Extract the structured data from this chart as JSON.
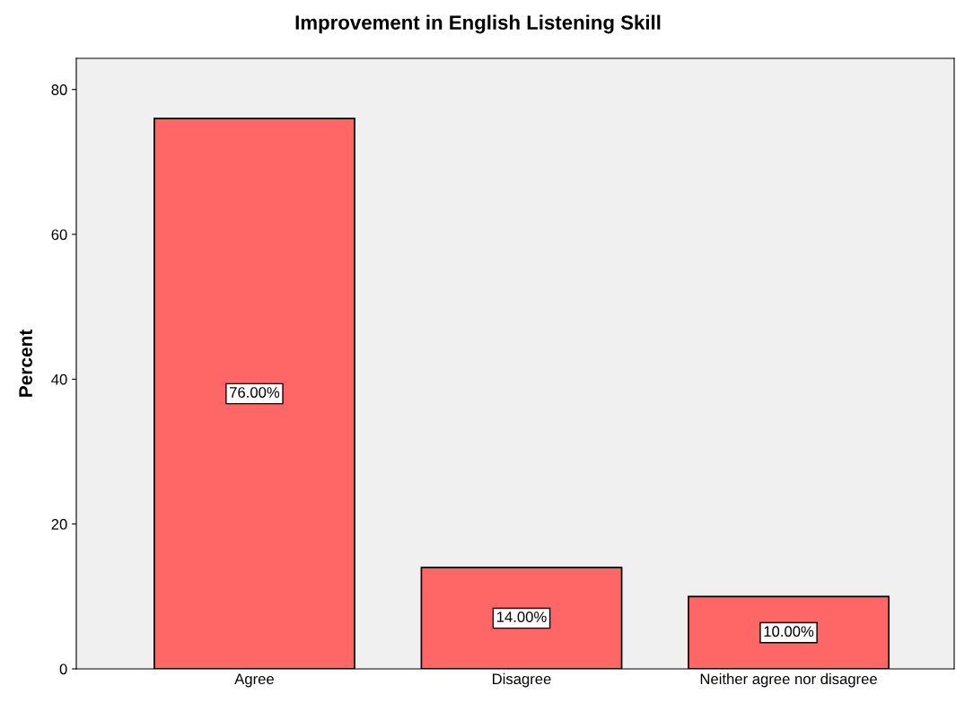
{
  "chart_data": {
    "type": "bar",
    "title": "Improvement in English Listening Skill",
    "ylabel": "Percent",
    "categories": [
      "Agree",
      "Disagree",
      "Neither agree nor disagree"
    ],
    "values": [
      76,
      14,
      10
    ],
    "value_labels": [
      "76.00%",
      "14.00%",
      "10.00%"
    ],
    "color": "#ff6666",
    "ylim": [
      0,
      84.3
    ],
    "yticks": [
      0,
      20,
      40,
      60,
      80
    ],
    "grid": false,
    "legend": false
  }
}
